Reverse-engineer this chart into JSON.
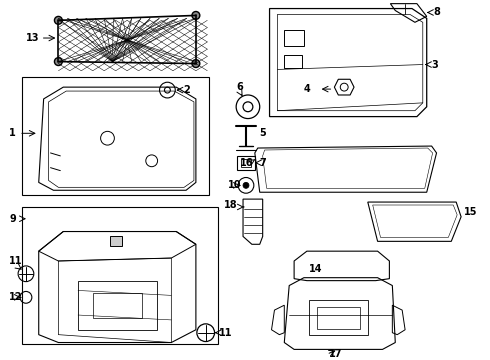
{
  "background_color": "#ffffff",
  "fig_width": 4.9,
  "fig_height": 3.6,
  "dpi": 100
}
